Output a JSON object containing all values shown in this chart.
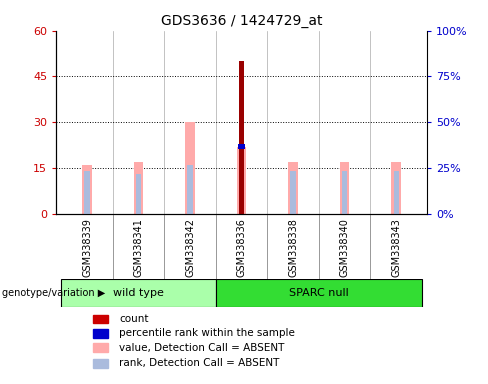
{
  "title": "GDS3636 / 1424729_at",
  "samples": [
    "GSM338339",
    "GSM338341",
    "GSM338342",
    "GSM338336",
    "GSM338338",
    "GSM338340",
    "GSM338343"
  ],
  "groups": [
    "wild type",
    "wild type",
    "wild type",
    "SPARC null",
    "SPARC null",
    "SPARC null",
    "SPARC null"
  ],
  "pink_bar_heights": [
    16,
    17,
    30,
    22,
    17,
    17,
    17
  ],
  "light_blue_bar_heights": [
    14,
    13,
    16,
    14,
    14,
    14,
    14
  ],
  "red_bar_heights": [
    0,
    0,
    0,
    50,
    0,
    0,
    0
  ],
  "blue_marker_y": [
    0,
    0,
    0,
    22,
    0,
    0,
    0
  ],
  "ylim_left": [
    0,
    60
  ],
  "ylim_right": [
    0,
    100
  ],
  "yticks_left": [
    0,
    15,
    30,
    45,
    60
  ],
  "yticks_right": [
    0,
    25,
    50,
    75,
    100
  ],
  "ytick_labels_left": [
    "0",
    "15",
    "30",
    "45",
    "60"
  ],
  "ytick_labels_right": [
    "0%",
    "25%",
    "50%",
    "75%",
    "100%"
  ],
  "left_tick_color": "#cc0000",
  "right_tick_color": "#0000cc",
  "sample_bg_color": "#cccccc",
  "plot_bg": "#ffffff",
  "wild_type_color": "#aaffaa",
  "sparc_null_color": "#33dd33",
  "legend_colors": [
    "#cc0000",
    "#0000cc",
    "#ffaaaa",
    "#aabbdd"
  ],
  "legend_labels": [
    "count",
    "percentile rank within the sample",
    "value, Detection Call = ABSENT",
    "rank, Detection Call = ABSENT"
  ]
}
